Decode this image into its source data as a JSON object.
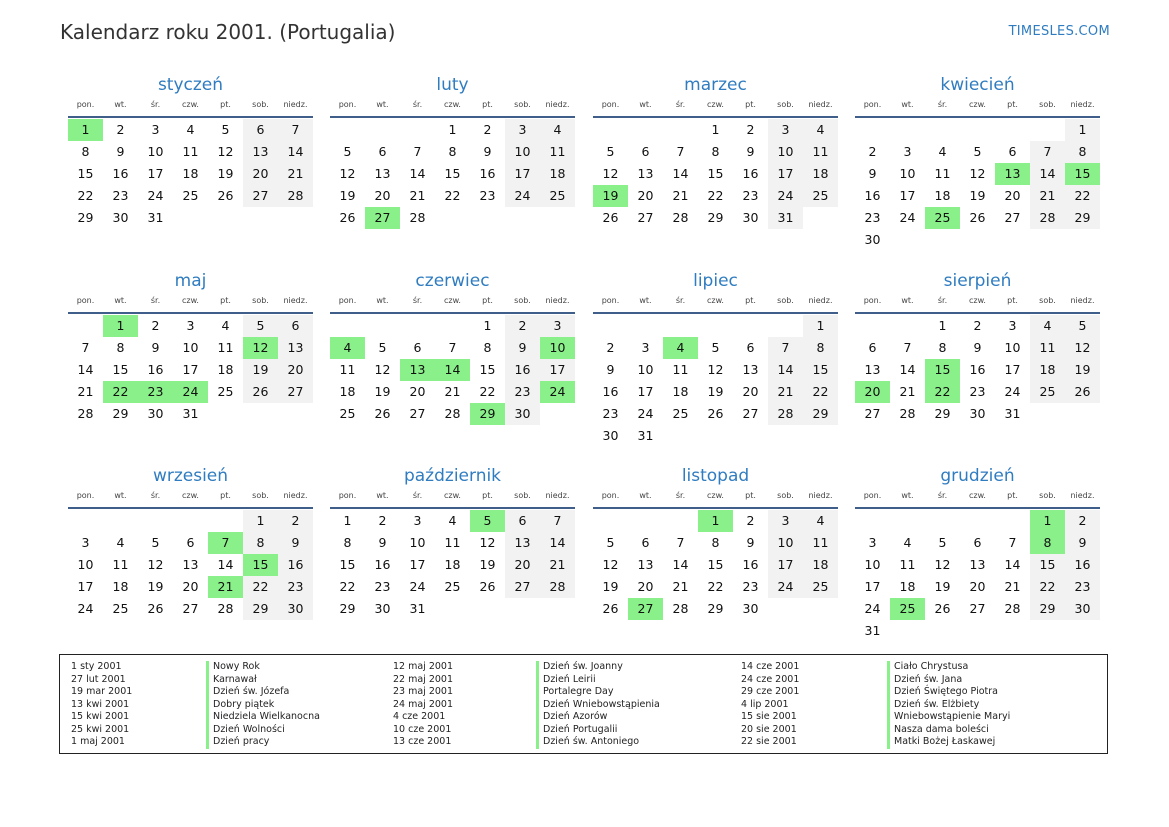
{
  "header": {
    "title": "Kalendarz roku 2001. (Portugalia)",
    "brand": "TIMESLES.COM"
  },
  "weekday_labels": [
    "pon.",
    "wt.",
    "śr.",
    "czw.",
    "pt.",
    "sob.",
    "niedz."
  ],
  "months": [
    {
      "name": "styczeń",
      "offset": 0,
      "days": 31,
      "holidays": [
        1
      ]
    },
    {
      "name": "luty",
      "offset": 3,
      "days": 28,
      "holidays": [
        27
      ]
    },
    {
      "name": "marzec",
      "offset": 3,
      "days": 31,
      "holidays": [
        19
      ]
    },
    {
      "name": "kwiecień",
      "offset": 6,
      "days": 30,
      "holidays": [
        13,
        15,
        25
      ]
    },
    {
      "name": "maj",
      "offset": 1,
      "days": 31,
      "holidays": [
        1,
        12,
        22,
        23,
        24
      ]
    },
    {
      "name": "czerwiec",
      "offset": 4,
      "days": 30,
      "holidays": [
        4,
        10,
        13,
        14,
        24,
        29
      ]
    },
    {
      "name": "lipiec",
      "offset": 6,
      "days": 31,
      "holidays": [
        4
      ]
    },
    {
      "name": "sierpień",
      "offset": 2,
      "days": 31,
      "holidays": [
        15,
        20,
        22
      ]
    },
    {
      "name": "wrzesień",
      "offset": 5,
      "days": 30,
      "holidays": [
        7,
        15,
        21
      ]
    },
    {
      "name": "październik",
      "offset": 0,
      "days": 31,
      "holidays": [
        5
      ]
    },
    {
      "name": "listopad",
      "offset": 3,
      "days": 30,
      "holidays": [
        1,
        27
      ]
    },
    {
      "name": "grudzień",
      "offset": 5,
      "days": 31,
      "holidays": [
        1,
        8,
        25
      ]
    }
  ],
  "legend": [
    [
      {
        "date": "1 sty 2001",
        "name": "Nowy Rok"
      },
      {
        "date": "27 lut 2001",
        "name": "Karnawał"
      },
      {
        "date": "19 mar 2001",
        "name": "Dzień św. Józefa"
      },
      {
        "date": "13 kwi 2001",
        "name": "Dobry piątek"
      },
      {
        "date": "15 kwi 2001",
        "name": "Niedziela Wielkanocna"
      },
      {
        "date": "25 kwi 2001",
        "name": "Dzień Wolności"
      },
      {
        "date": "1 maj 2001",
        "name": "Dzień pracy"
      }
    ],
    [
      {
        "date": "12 maj 2001",
        "name": "Dzień św. Joanny"
      },
      {
        "date": "22 maj 2001",
        "name": "Dzień Leirii"
      },
      {
        "date": "23 maj 2001",
        "name": "Portalegre Day"
      },
      {
        "date": "24 maj 2001",
        "name": "Dzień Wniebowstąpienia"
      },
      {
        "date": "4 cze 2001",
        "name": "Dzień Azorów"
      },
      {
        "date": "10 cze 2001",
        "name": "Dzień Portugalii"
      },
      {
        "date": "13 cze 2001",
        "name": "Dzień św. Antoniego"
      }
    ],
    [
      {
        "date": "14 cze 2001",
        "name": "Ciało Chrystusa"
      },
      {
        "date": "24 cze 2001",
        "name": "Dzień św. Jana"
      },
      {
        "date": "29 cze 2001",
        "name": "Dzień Świętego Piotra"
      },
      {
        "date": "4 lip 2001",
        "name": "Dzień św. Elżbiety"
      },
      {
        "date": "15 sie 2001",
        "name": "Wniebowstąpienie Maryi"
      },
      {
        "date": "20 sie 2001",
        "name": "Nasza dama boleści"
      },
      {
        "date": "22 sie 2001",
        "name": "Matki Bożej Łaskawej"
      }
    ]
  ]
}
